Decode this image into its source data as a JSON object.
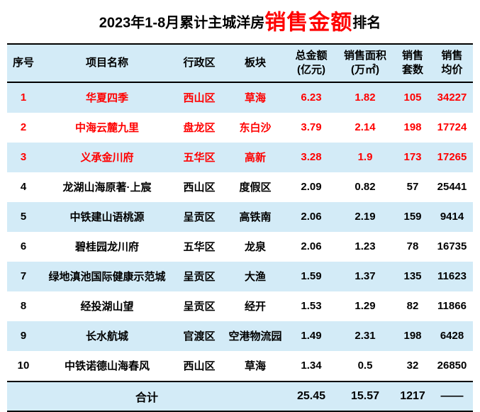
{
  "title": {
    "prefix": "2023年1-8月累计主城洋房",
    "highlight": "销售金额",
    "suffix": "排名"
  },
  "colors": {
    "highlight_red": "#ff0000",
    "row_blue": "#d3ebf7"
  },
  "chart_data": {
    "type": "table",
    "title": "2023年1-8月累计主城洋房销售金额排名",
    "headers": [
      "序号",
      "项目名称",
      "行政区",
      "板块",
      "总金额\n(亿元)",
      "销售面积\n(万㎡)",
      "销售\n套数",
      "销售\n均价"
    ],
    "rows": [
      {
        "rank": "1",
        "name": "华夏四季",
        "district": "西山区",
        "block": "草海",
        "amount": "6.23",
        "area": "1.82",
        "units": "105",
        "price": "34227",
        "highlight": true
      },
      {
        "rank": "2",
        "name": "中海云麓九里",
        "district": "盘龙区",
        "block": "东白沙",
        "amount": "3.79",
        "area": "2.14",
        "units": "198",
        "price": "17724",
        "highlight": true
      },
      {
        "rank": "3",
        "name": "义承金川府",
        "district": "五华区",
        "block": "高新",
        "amount": "3.28",
        "area": "1.9",
        "units": "173",
        "price": "17265",
        "highlight": true
      },
      {
        "rank": "4",
        "name": "龙湖山海原著·上宸",
        "district": "西山区",
        "block": "度假区",
        "amount": "2.09",
        "area": "0.82",
        "units": "57",
        "price": "25441",
        "highlight": false
      },
      {
        "rank": "5",
        "name": "中铁建山语桃源",
        "district": "呈贡区",
        "block": "高铁南",
        "amount": "2.06",
        "area": "2.19",
        "units": "159",
        "price": "9414",
        "highlight": false
      },
      {
        "rank": "6",
        "name": "碧桂园龙川府",
        "district": "五华区",
        "block": "龙泉",
        "amount": "2.06",
        "area": "1.23",
        "units": "78",
        "price": "16735",
        "highlight": false
      },
      {
        "rank": "7",
        "name": "绿地滇池国际健康示范城",
        "district": "呈贡区",
        "block": "大渔",
        "amount": "1.59",
        "area": "1.37",
        "units": "135",
        "price": "11623",
        "highlight": false
      },
      {
        "rank": "8",
        "name": "经投湖山望",
        "district": "呈贡区",
        "block": "经开",
        "amount": "1.53",
        "area": "1.29",
        "units": "82",
        "price": "11866",
        "highlight": false
      },
      {
        "rank": "9",
        "name": "长水航城",
        "district": "官渡区",
        "block": "空港物流园",
        "amount": "1.49",
        "area": "2.31",
        "units": "198",
        "price": "6428",
        "highlight": false
      },
      {
        "rank": "10",
        "name": "中铁诺德山海春风",
        "district": "西山区",
        "block": "草海",
        "amount": "1.34",
        "area": "0.5",
        "units": "32",
        "price": "26850",
        "highlight": false
      }
    ],
    "footer": {
      "label": "合计",
      "amount": "25.45",
      "area": "15.57",
      "units": "1217",
      "price": "——"
    }
  }
}
